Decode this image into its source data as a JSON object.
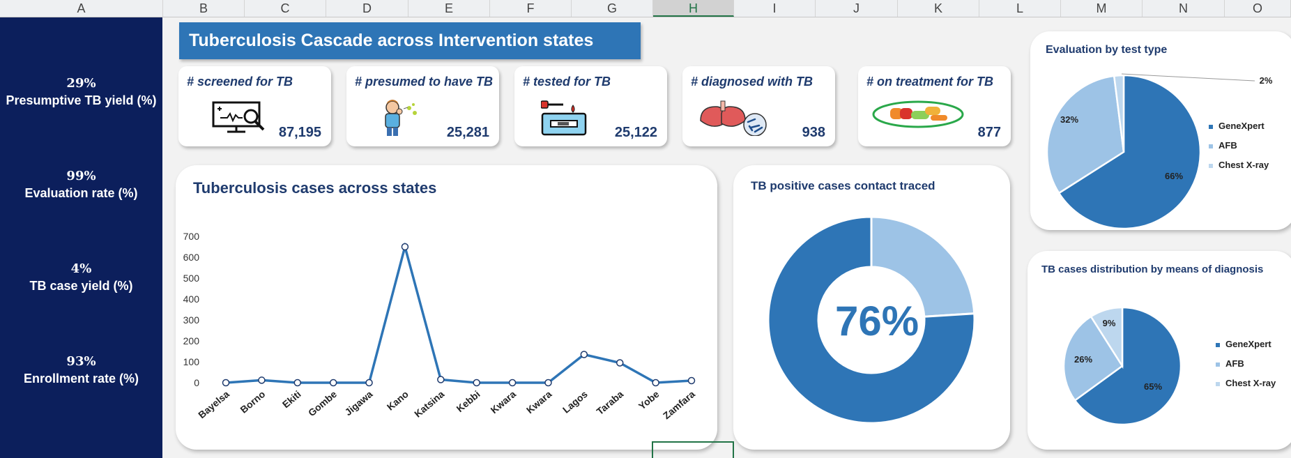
{
  "columns": [
    "A",
    "B",
    "C",
    "D",
    "E",
    "F",
    "G",
    "H",
    "I",
    "J",
    "K",
    "L",
    "M",
    "N",
    "O"
  ],
  "selected_column": "H",
  "kpis": [
    {
      "value": "29%",
      "label": "Presumptive TB yield (%)"
    },
    {
      "value": "99%",
      "label": "Evaluation rate (%)"
    },
    {
      "value": "4%",
      "label": "TB case yield (%)"
    },
    {
      "value": "93%",
      "label": "Enrollment rate (%)"
    }
  ],
  "title": "Tuberculosis Cascade across Intervention states",
  "cards": [
    {
      "title": "# screened for TB",
      "value": "87,195",
      "icon": "monitor-health-icon"
    },
    {
      "title": "# presumed to have TB",
      "value": "25,281",
      "icon": "coughing-person-icon"
    },
    {
      "title": "# tested for TB",
      "value": "25,122",
      "icon": "lab-test-device-icon"
    },
    {
      "title": "# diagnosed with TB",
      "value": "938",
      "icon": "lungs-bacteria-icon"
    },
    {
      "title": "# on treatment for TB",
      "value": "877",
      "icon": "pills-icon"
    }
  ],
  "line_chart_title": "Tuberculosis cases across states",
  "contact_title": "TB positive cases contact traced",
  "contact_percent": "76%",
  "eval_title": "Evaluation by test type",
  "diag_title": "TB cases distribution by means of diagnosis",
  "colors": {
    "navy": "#0c1f5c",
    "dark_blue": "#2e75b6",
    "mid_blue": "#9dc3e6",
    "light_blue": "#bdd7ee"
  },
  "chart_data": [
    {
      "type": "line",
      "title": "Tuberculosis cases across states",
      "categories": [
        "Bayelsa",
        "Borno",
        "Ekiti",
        "Gombe",
        "Jigawa",
        "Kano",
        "Katsina",
        "Kebbi",
        "Kwara",
        "Kwara",
        "Lagos",
        "Taraba",
        "Yobe",
        "Zamfara"
      ],
      "values": [
        0,
        12,
        0,
        0,
        0,
        650,
        15,
        0,
        0,
        0,
        135,
        95,
        0,
        10
      ],
      "yticks": [
        0,
        100,
        200,
        300,
        400,
        500,
        600,
        700
      ],
      "ylim": [
        0,
        700
      ],
      "grid": false
    },
    {
      "type": "pie",
      "title": "TB positive cases contact traced",
      "donut": true,
      "values": [
        76,
        24
      ],
      "center_label": "76%"
    },
    {
      "type": "pie",
      "title": "Evaluation by test type",
      "categories": [
        "GeneXpert",
        "AFB",
        "Chest X-ray"
      ],
      "values": [
        66,
        32,
        2
      ],
      "labels": [
        "66%",
        "32%",
        "2%"
      ],
      "legend": "right"
    },
    {
      "type": "pie",
      "title": "TB cases distribution by means of diagnosis",
      "categories": [
        "GeneXpert",
        "AFB",
        "Chest X-ray"
      ],
      "values": [
        65,
        26,
        9
      ],
      "labels": [
        "65%",
        "26%",
        "9%"
      ],
      "legend": "right"
    }
  ]
}
